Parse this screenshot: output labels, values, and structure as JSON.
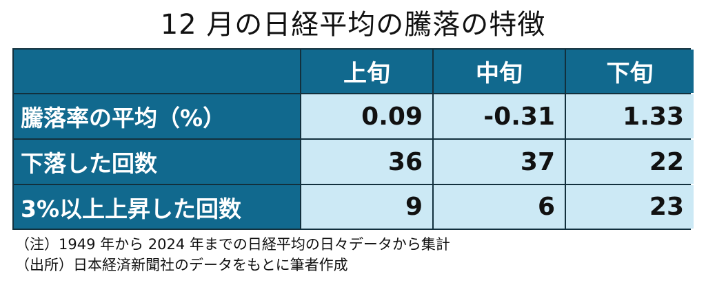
{
  "title": "12 月の日経平均の騰落の特徴",
  "table": {
    "headers": [
      "",
      "上旬",
      "中旬",
      "下旬"
    ],
    "rows": [
      {
        "label": "騰落率の平均（%）",
        "values": [
          "0.09",
          "-0.31",
          "1.33"
        ]
      },
      {
        "label": "下落した回数",
        "values": [
          "36",
          "37",
          "22"
        ]
      },
      {
        "label": "3%以上上昇した回数",
        "values": [
          "9",
          "6",
          "23"
        ]
      }
    ]
  },
  "notes": [
    "（注）1949 年から 2024 年までの日経平均の日々データから集計",
    "（出所）日本経済新聞社のデータをもとに筆者作成"
  ],
  "colors": {
    "header_bg": "#11698e",
    "value_bg": "#cce9f5",
    "border": "#12303d"
  }
}
